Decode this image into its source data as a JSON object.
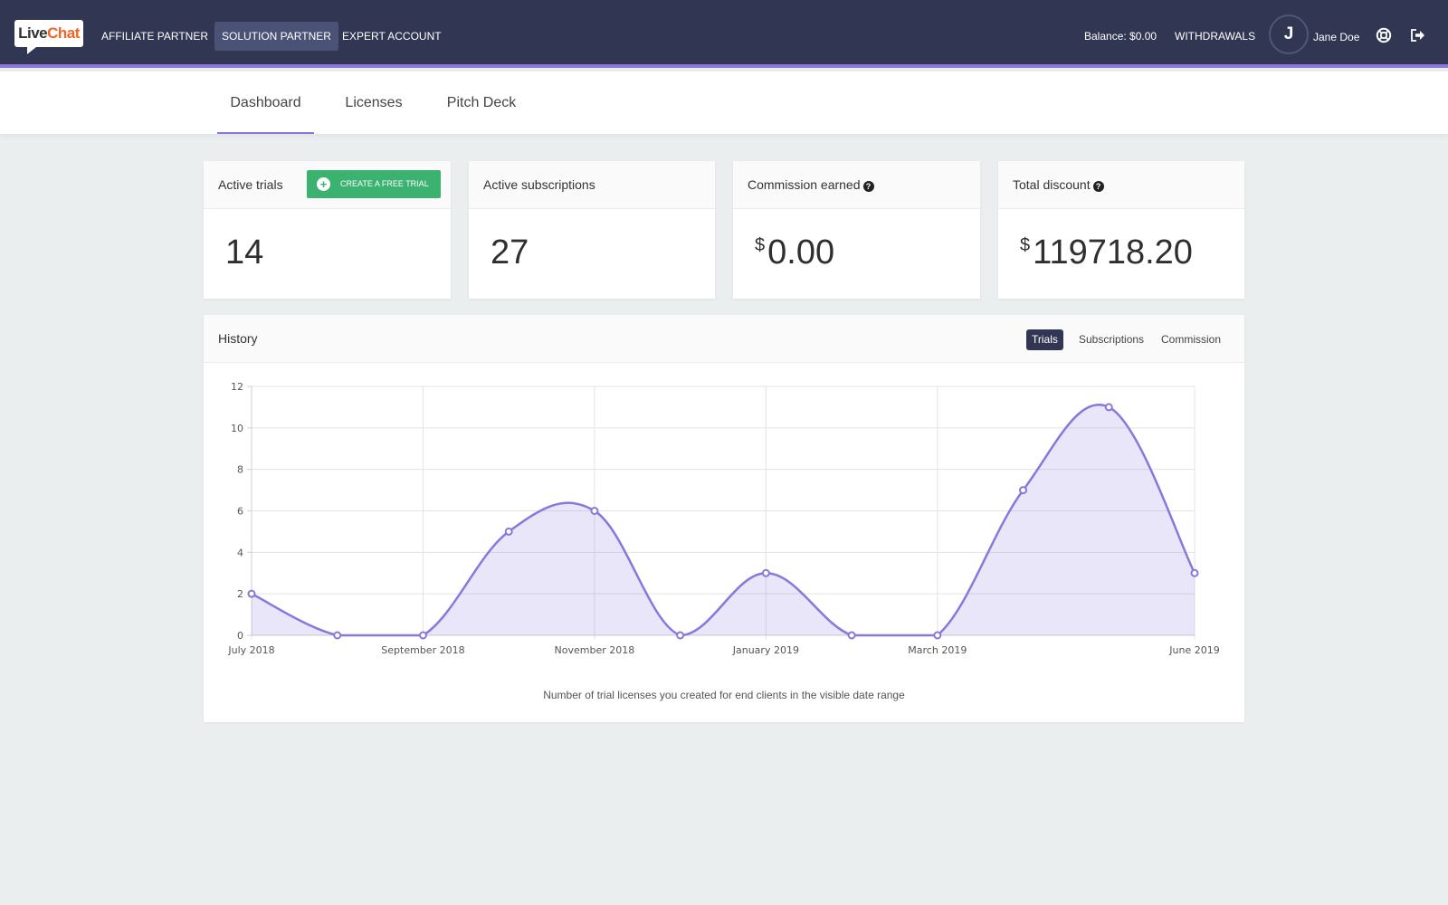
{
  "header": {
    "logo": {
      "part1": "Live",
      "part2": "Chat"
    },
    "nav": [
      "AFFILIATE PARTNER",
      "SOLUTION PARTNER",
      "EXPERT ACCOUNT"
    ],
    "active_nav": "SOLUTION PARTNER",
    "balance": "Balance: $0.00",
    "withdrawals": "WITHDRAWALS",
    "avatar_initial": "J",
    "user_name": "Jane Doe",
    "icons": {
      "help": "lifebuoy-icon",
      "logout": "sign-out-icon"
    }
  },
  "tabs": [
    "Dashboard",
    "Licenses",
    "Pitch Deck"
  ],
  "active_tab": "Dashboard",
  "cards": [
    {
      "title": "Active trials",
      "value": "14",
      "currency": "",
      "button": "CREATE A FREE TRIAL"
    },
    {
      "title": "Active subscriptions",
      "value": "27",
      "currency": ""
    },
    {
      "title": "Commission earned",
      "value": "0.00",
      "currency": "$",
      "help": true
    },
    {
      "title": "Total discount",
      "value": "119718.20",
      "currency": "$",
      "help": true
    }
  ],
  "history": {
    "title": "History",
    "tabs": [
      "Trials",
      "Subscriptions",
      "Commission"
    ],
    "active_tab": "Trials",
    "note": "Number of trial licenses you created for end clients in the visible date range"
  },
  "colors": {
    "header": "#313752",
    "accent": "#8a77dc",
    "green": "#3cb270",
    "background": "#eaeeef"
  },
  "chart_data": {
    "type": "area",
    "x": [
      "July 2018",
      "August 2018",
      "September 2018",
      "October 2018",
      "November 2018",
      "December 2018",
      "January 2019",
      "February 2019",
      "March 2019",
      "April 2019",
      "May 2019",
      "June 2019"
    ],
    "x_tick_labels": [
      "July 2018",
      "September 2018",
      "November 2018",
      "January 2019",
      "March 2019",
      "June 2019"
    ],
    "values": [
      2,
      0,
      0,
      5,
      6,
      0,
      3,
      0,
      0,
      7,
      11,
      3
    ],
    "ylim": [
      0,
      12
    ],
    "y_ticks": [
      0,
      2,
      4,
      6,
      8,
      10,
      12
    ],
    "grid": true
  }
}
